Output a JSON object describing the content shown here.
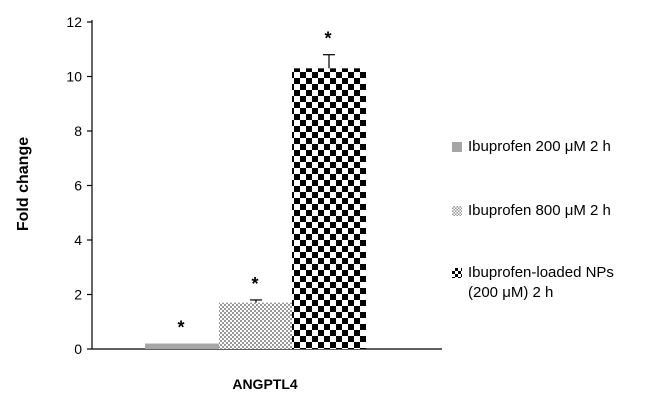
{
  "chart_data": {
    "type": "bar",
    "ylabel": "Fold change",
    "categories": [
      "ANGPTL4"
    ],
    "ylim": [
      0,
      12
    ],
    "yticks": [
      0,
      2,
      4,
      6,
      8,
      10,
      12
    ],
    "grid": false,
    "legend_position": "right",
    "series": [
      {
        "name": "Ibuprofen 200 μM 2 h",
        "values": [
          0.2
        ],
        "error": [
          0.0
        ],
        "annotation": "*",
        "pattern": "solid",
        "color": "#a6a6a6"
      },
      {
        "name": "Ibuprofen 800 μM 2 h",
        "values": [
          1.7
        ],
        "error": [
          0.1
        ],
        "annotation": "*",
        "pattern": "fine-check",
        "color": "#b0b0b0"
      },
      {
        "name": "Ibuprofen-loaded NPs\n(200 μM) 2 h",
        "values": [
          10.3
        ],
        "error": [
          0.5
        ],
        "annotation": "*",
        "pattern": "checkerboard",
        "color": "#000000"
      }
    ]
  }
}
